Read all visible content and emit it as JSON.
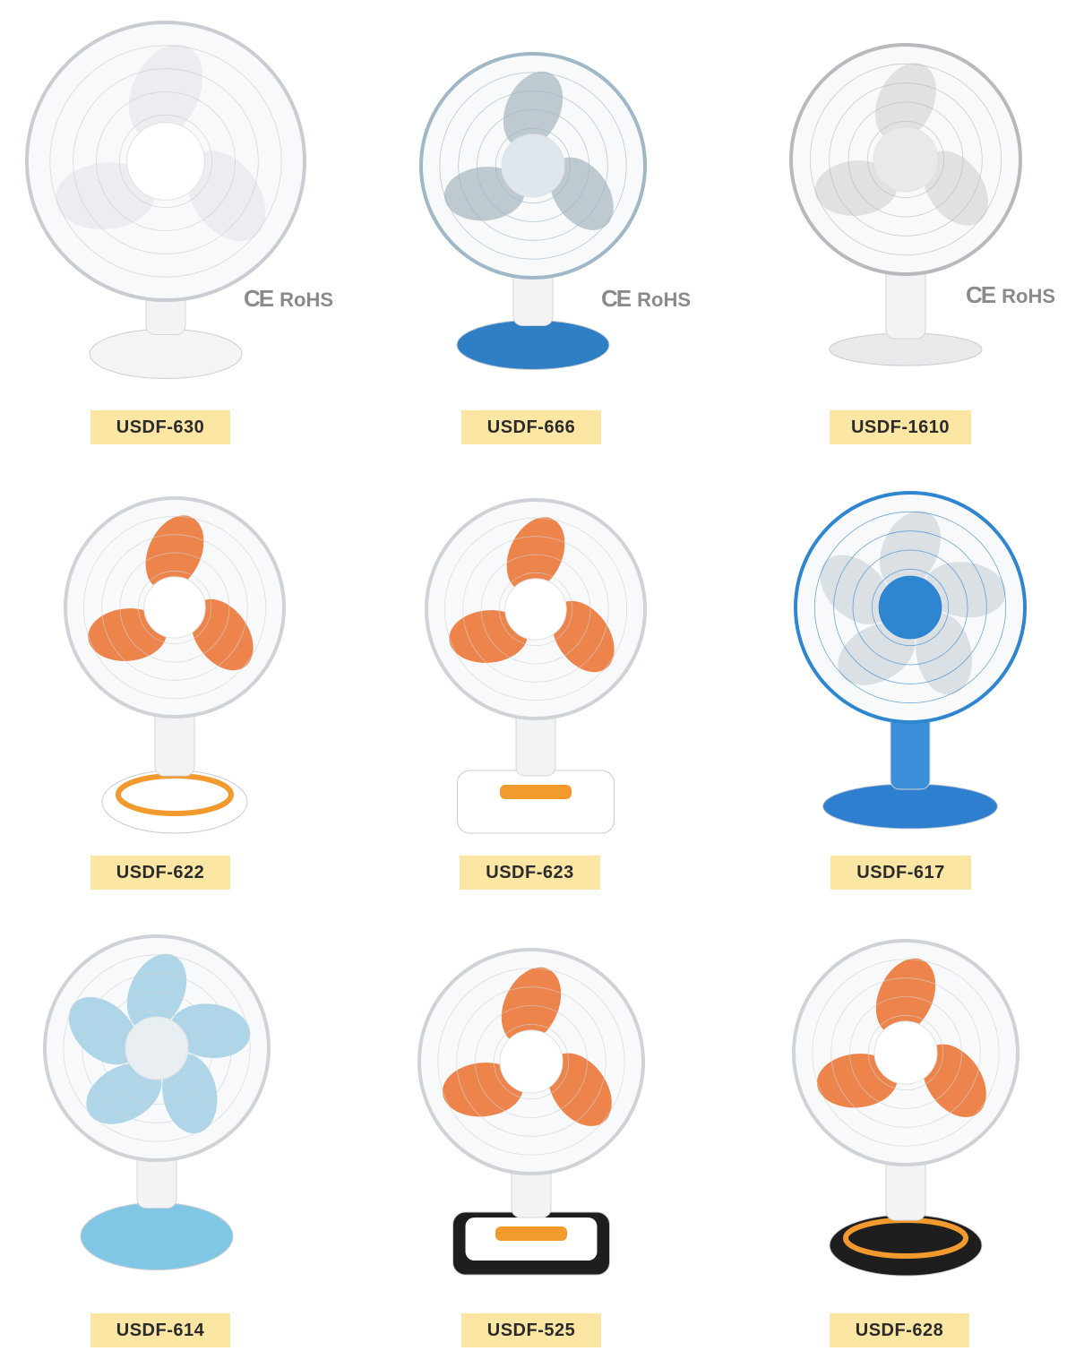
{
  "products": [
    {
      "model": "USDF-630",
      "cert": {
        "ce": "CE",
        "rohs": "RoHS"
      },
      "style": {
        "blade": "#e9ecef",
        "hub": "#ffffff",
        "base": "#f3f4f6",
        "grill": "#c9ccd2"
      },
      "blades": 3
    },
    {
      "model": "USDF-666",
      "cert": {
        "ce": "CE",
        "rohs": "RoHS"
      },
      "style": {
        "blade": "#b9c4cc",
        "hub": "#dfe6ec",
        "base": "#2f7fc4",
        "grill": "#9fb7c6"
      },
      "blades": 3
    },
    {
      "model": "USDF-1610",
      "cert": {
        "ce": "CE",
        "rohs": "RoHS"
      },
      "style": {
        "blade": "#dcdee1",
        "hub": "#e8e9eb",
        "base": "#e8e9eb",
        "grill": "#b7b9bd"
      },
      "blades": 3
    },
    {
      "model": "USDF-622",
      "style": {
        "blade": "#ec7a3c",
        "hub": "#ffffff",
        "base": "#ffffff",
        "accent": "#f39a2e",
        "grill": "#cfd2d6"
      },
      "blades": 3
    },
    {
      "model": "USDF-623",
      "style": {
        "blade": "#ec7a3c",
        "hub": "#ffffff",
        "base": "#ffffff",
        "accent": "#f39a2e",
        "grill": "#cfd2d6"
      },
      "blades": 3
    },
    {
      "model": "USDF-617",
      "style": {
        "blade": "#d8dde2",
        "hub": "#2f86d0",
        "base": "#2f7fd0",
        "grill": "#2f86d0"
      },
      "blades": 5
    },
    {
      "model": "USDF-614",
      "style": {
        "blade": "#a8d3e6",
        "hub": "#e9eef2",
        "base": "#7fc7e4",
        "grill": "#cfd2d6"
      },
      "blades": 5
    },
    {
      "model": "USDF-525",
      "style": {
        "blade": "#ec7a3c",
        "hub": "#ffffff",
        "base": "#1e1e1e",
        "accent": "#f39a2e",
        "grill": "#cfd2d6"
      },
      "blades": 3
    },
    {
      "model": "USDF-628",
      "style": {
        "blade": "#ec7a3c",
        "hub": "#ffffff",
        "base": "#1e1e1e",
        "accent": "#f39a2e",
        "grill": "#cfd2d6"
      },
      "blades": 3
    }
  ]
}
